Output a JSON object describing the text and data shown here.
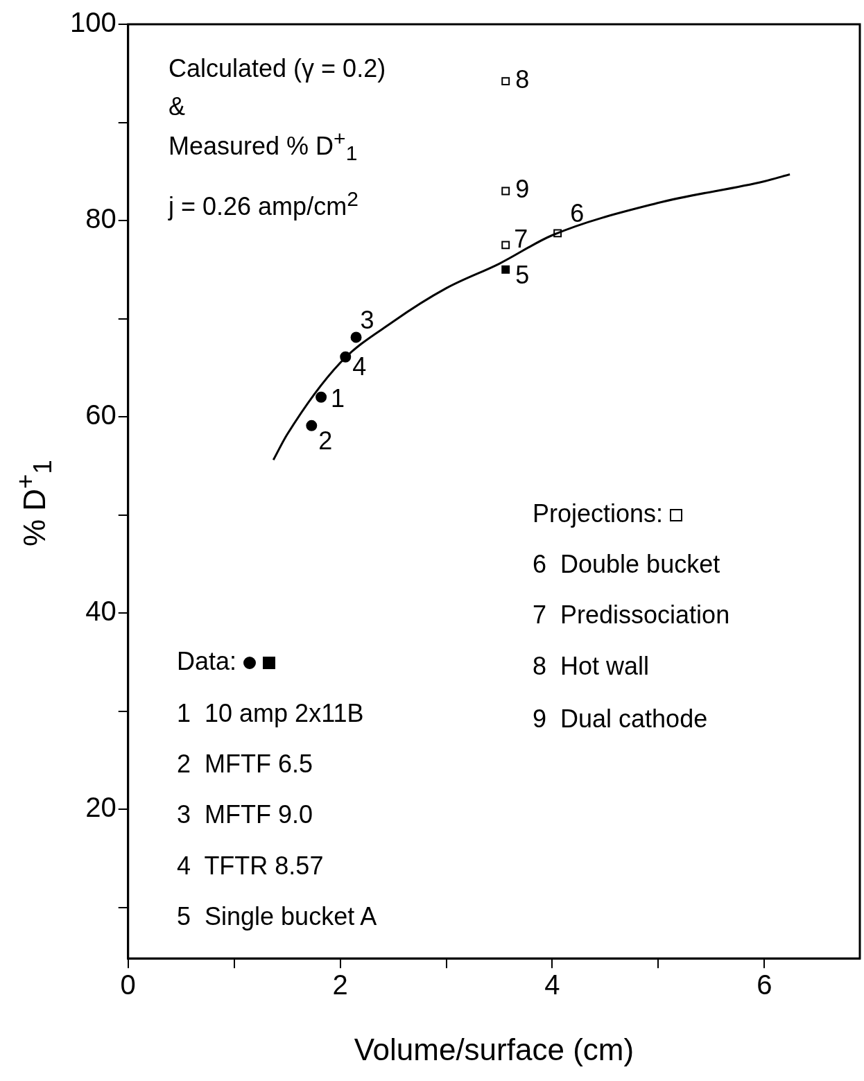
{
  "chart_data": {
    "type": "scatter",
    "xlabel": "Volume/surface (cm)",
    "ylabel": "% D$^{+}$$_{1}$",
    "xlim": [
      0,
      6.9
    ],
    "xticks": [
      0,
      {
        "value": 1,
        "label": null
      },
      2,
      {
        "value": 3,
        "label": null
      },
      4,
      {
        "value": 5,
        "label": null
      },
      6
    ],
    "ylim": [
      4.8,
      100
    ],
    "yticks": [
      {
        "value": 10,
        "label": null
      },
      20,
      {
        "value": 30,
        "label": null
      },
      40,
      {
        "value": 50,
        "label": null
      },
      60,
      {
        "value": 70,
        "label": null
      },
      80,
      {
        "value": 90,
        "label": null
      },
      100
    ],
    "grid": false,
    "legend": false,
    "series": [
      {
        "type": "line",
        "marker": "none",
        "color": "#000000",
        "x": [
          1.37,
          1.5,
          2,
          2.5,
          3,
          3.5,
          4,
          5,
          6,
          6.24
        ],
        "values": [
          55.6,
          58.2,
          65.5,
          69.7,
          73.1,
          75.6,
          78.5,
          81.8,
          84.0,
          84.7
        ]
      },
      {
        "marker": "circle",
        "color": "#000000",
        "x": [
          1.82,
          1.73,
          2.15,
          2.05
        ],
        "values": [
          62.0,
          59.1,
          68.1,
          66.1
        ]
      },
      {
        "marker": "square",
        "color": "#000000",
        "x": [
          3.56
        ],
        "values": [
          75.0
        ]
      },
      {
        "marker": "square",
        "color": "#000000",
        "x": [
          4.05,
          3.56,
          3.56,
          3.56
        ],
        "values": [
          78.7,
          77.5,
          94.2,
          83.0
        ]
      }
    ],
    "annotations": [
      {
        "text": "1",
        "x": 1.82,
        "y": 62.0
      },
      {
        "text": "2",
        "x": 1.73,
        "y": 59.1
      },
      {
        "text": "3",
        "x": 2.15,
        "y": 68.1
      },
      {
        "text": "4",
        "x": 2.05,
        "y": 66.1
      },
      {
        "text": "5",
        "x": 3.56,
        "y": 75.0
      },
      {
        "text": "6",
        "x": 4.05,
        "y": 78.7
      },
      {
        "text": "7",
        "x": 3.56,
        "y": 77.5
      },
      {
        "text": "8",
        "x": 3.56,
        "y": 94.2
      },
      {
        "text": "9",
        "x": 3.56,
        "y": 83.0
      },
      "Calculated (γ = 0.2)",
      "&",
      "Measured % D$^{+}$$_{1}$",
      "j = 0.26 amp/cm$^{2}$",
      "Projections:",
      "6  Double bucket",
      "7  Predissociation",
      "8  Hot wall",
      "9  Dual cathode",
      "Data:",
      "1  10 amp 2x11B",
      "2  MFTF 6.5",
      "3  MFTF 9.0",
      "4  TFTR 8.57",
      "5  Single bucket A"
    ]
  }
}
